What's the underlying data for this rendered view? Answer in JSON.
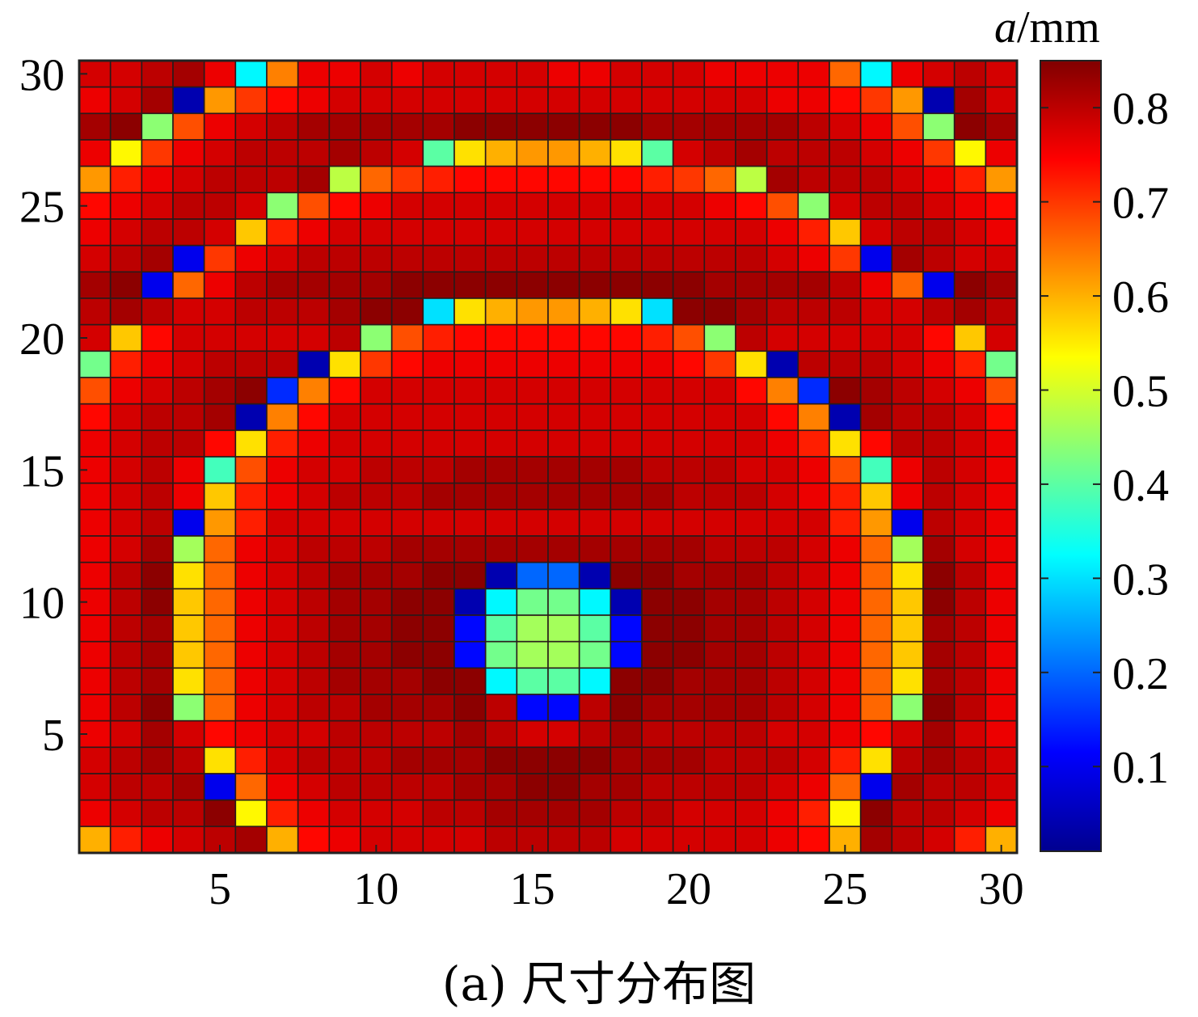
{
  "caption": "(a) 尺寸分布图",
  "chart_data": {
    "type": "heatmap",
    "title": "",
    "xlabel": "",
    "ylabel": "",
    "x_range": [
      1,
      30
    ],
    "y_range": [
      1,
      30
    ],
    "x_ticks": [
      5,
      10,
      15,
      20,
      25,
      30
    ],
    "y_ticks": [
      5,
      10,
      15,
      20,
      25,
      30
    ],
    "colorbar": {
      "label_italic": "a",
      "label_unit": "/mm",
      "range": [
        0.01,
        0.85
      ],
      "ticks": [
        0.1,
        0.2,
        0.3,
        0.4,
        0.5,
        0.6,
        0.7,
        0.8
      ],
      "colormap": "jet"
    },
    "grid": true,
    "note_rows": "values[0] is y=30 (top row), values[29] is y=1 (bottom row); columns x=1..30",
    "values": [
      [
        0.78,
        0.78,
        0.8,
        0.82,
        0.76,
        0.32,
        0.64,
        0.76,
        0.76,
        0.78,
        0.76,
        0.78,
        0.78,
        0.78,
        0.78,
        0.76,
        0.76,
        0.78,
        0.78,
        0.78,
        0.76,
        0.76,
        0.76,
        0.76,
        0.66,
        0.32,
        0.76,
        0.78,
        0.8,
        0.78
      ],
      [
        0.76,
        0.78,
        0.82,
        0.05,
        0.62,
        0.7,
        0.74,
        0.76,
        0.78,
        0.78,
        0.78,
        0.78,
        0.78,
        0.78,
        0.78,
        0.78,
        0.78,
        0.78,
        0.78,
        0.78,
        0.78,
        0.78,
        0.76,
        0.76,
        0.74,
        0.7,
        0.62,
        0.05,
        0.82,
        0.78
      ],
      [
        0.82,
        0.84,
        0.44,
        0.68,
        0.76,
        0.78,
        0.8,
        0.82,
        0.82,
        0.82,
        0.82,
        0.82,
        0.84,
        0.84,
        0.84,
        0.84,
        0.84,
        0.84,
        0.82,
        0.82,
        0.82,
        0.82,
        0.82,
        0.8,
        0.78,
        0.76,
        0.68,
        0.44,
        0.84,
        0.82
      ],
      [
        0.76,
        0.54,
        0.7,
        0.76,
        0.78,
        0.8,
        0.8,
        0.8,
        0.82,
        0.8,
        0.78,
        0.4,
        0.56,
        0.6,
        0.62,
        0.62,
        0.6,
        0.56,
        0.4,
        0.78,
        0.8,
        0.82,
        0.8,
        0.8,
        0.8,
        0.78,
        0.76,
        0.7,
        0.54,
        0.76
      ],
      [
        0.62,
        0.72,
        0.76,
        0.78,
        0.8,
        0.8,
        0.8,
        0.82,
        0.48,
        0.66,
        0.7,
        0.72,
        0.74,
        0.74,
        0.74,
        0.74,
        0.74,
        0.74,
        0.72,
        0.7,
        0.66,
        0.48,
        0.82,
        0.8,
        0.8,
        0.8,
        0.78,
        0.76,
        0.72,
        0.62
      ],
      [
        0.74,
        0.76,
        0.78,
        0.8,
        0.8,
        0.78,
        0.44,
        0.68,
        0.74,
        0.76,
        0.78,
        0.78,
        0.78,
        0.78,
        0.78,
        0.78,
        0.78,
        0.78,
        0.78,
        0.78,
        0.76,
        0.74,
        0.68,
        0.44,
        0.78,
        0.8,
        0.8,
        0.78,
        0.76,
        0.74
      ],
      [
        0.76,
        0.78,
        0.8,
        0.8,
        0.78,
        0.58,
        0.72,
        0.76,
        0.78,
        0.78,
        0.78,
        0.78,
        0.78,
        0.78,
        0.78,
        0.78,
        0.78,
        0.78,
        0.78,
        0.78,
        0.78,
        0.78,
        0.76,
        0.72,
        0.58,
        0.78,
        0.8,
        0.8,
        0.78,
        0.76
      ],
      [
        0.78,
        0.8,
        0.82,
        0.1,
        0.7,
        0.76,
        0.78,
        0.8,
        0.8,
        0.8,
        0.8,
        0.8,
        0.8,
        0.8,
        0.8,
        0.8,
        0.8,
        0.8,
        0.8,
        0.8,
        0.8,
        0.8,
        0.78,
        0.76,
        0.7,
        0.1,
        0.82,
        0.8,
        0.78,
        0.78
      ],
      [
        0.82,
        0.84,
        0.1,
        0.66,
        0.76,
        0.8,
        0.82,
        0.82,
        0.82,
        0.82,
        0.84,
        0.84,
        0.84,
        0.84,
        0.84,
        0.84,
        0.84,
        0.84,
        0.84,
        0.84,
        0.82,
        0.82,
        0.82,
        0.82,
        0.8,
        0.76,
        0.66,
        0.1,
        0.84,
        0.82
      ],
      [
        0.8,
        0.82,
        0.8,
        0.78,
        0.78,
        0.8,
        0.8,
        0.8,
        0.82,
        0.84,
        0.84,
        0.3,
        0.56,
        0.6,
        0.62,
        0.62,
        0.6,
        0.56,
        0.3,
        0.84,
        0.84,
        0.82,
        0.8,
        0.8,
        0.8,
        0.78,
        0.78,
        0.8,
        0.82,
        0.8
      ],
      [
        0.78,
        0.58,
        0.74,
        0.78,
        0.78,
        0.78,
        0.78,
        0.78,
        0.8,
        0.44,
        0.68,
        0.72,
        0.74,
        0.74,
        0.74,
        0.74,
        0.74,
        0.74,
        0.72,
        0.68,
        0.44,
        0.8,
        0.78,
        0.78,
        0.78,
        0.78,
        0.78,
        0.74,
        0.58,
        0.78
      ],
      [
        0.42,
        0.72,
        0.76,
        0.78,
        0.8,
        0.8,
        0.8,
        0.05,
        0.56,
        0.7,
        0.74,
        0.76,
        0.76,
        0.76,
        0.76,
        0.76,
        0.76,
        0.76,
        0.76,
        0.74,
        0.7,
        0.56,
        0.05,
        0.8,
        0.8,
        0.8,
        0.78,
        0.76,
        0.72,
        0.42
      ],
      [
        0.68,
        0.76,
        0.78,
        0.8,
        0.82,
        0.84,
        0.15,
        0.64,
        0.74,
        0.78,
        0.78,
        0.78,
        0.78,
        0.78,
        0.78,
        0.78,
        0.78,
        0.78,
        0.78,
        0.78,
        0.78,
        0.74,
        0.64,
        0.15,
        0.84,
        0.82,
        0.8,
        0.78,
        0.76,
        0.68
      ],
      [
        0.74,
        0.78,
        0.8,
        0.8,
        0.82,
        0.05,
        0.64,
        0.74,
        0.78,
        0.78,
        0.78,
        0.78,
        0.78,
        0.78,
        0.78,
        0.78,
        0.78,
        0.78,
        0.78,
        0.78,
        0.78,
        0.78,
        0.74,
        0.64,
        0.05,
        0.82,
        0.8,
        0.8,
        0.78,
        0.74
      ],
      [
        0.76,
        0.78,
        0.8,
        0.8,
        0.74,
        0.56,
        0.72,
        0.76,
        0.78,
        0.78,
        0.78,
        0.78,
        0.78,
        0.78,
        0.78,
        0.78,
        0.78,
        0.78,
        0.78,
        0.78,
        0.78,
        0.78,
        0.76,
        0.72,
        0.56,
        0.74,
        0.8,
        0.8,
        0.78,
        0.76
      ],
      [
        0.76,
        0.78,
        0.8,
        0.76,
        0.38,
        0.68,
        0.76,
        0.78,
        0.78,
        0.8,
        0.8,
        0.8,
        0.82,
        0.82,
        0.82,
        0.82,
        0.82,
        0.82,
        0.8,
        0.8,
        0.8,
        0.78,
        0.78,
        0.76,
        0.68,
        0.38,
        0.76,
        0.8,
        0.78,
        0.76
      ],
      [
        0.76,
        0.78,
        0.8,
        0.76,
        0.58,
        0.72,
        0.76,
        0.78,
        0.8,
        0.8,
        0.8,
        0.82,
        0.82,
        0.82,
        0.82,
        0.82,
        0.82,
        0.82,
        0.82,
        0.8,
        0.8,
        0.8,
        0.78,
        0.76,
        0.72,
        0.58,
        0.76,
        0.8,
        0.78,
        0.76
      ],
      [
        0.76,
        0.78,
        0.8,
        0.1,
        0.62,
        0.72,
        0.78,
        0.78,
        0.78,
        0.78,
        0.78,
        0.78,
        0.78,
        0.78,
        0.78,
        0.78,
        0.78,
        0.78,
        0.78,
        0.78,
        0.78,
        0.78,
        0.78,
        0.78,
        0.72,
        0.62,
        0.1,
        0.8,
        0.78,
        0.76
      ],
      [
        0.76,
        0.78,
        0.82,
        0.46,
        0.66,
        0.76,
        0.78,
        0.8,
        0.8,
        0.8,
        0.82,
        0.82,
        0.82,
        0.82,
        0.82,
        0.82,
        0.82,
        0.82,
        0.82,
        0.82,
        0.8,
        0.8,
        0.8,
        0.78,
        0.76,
        0.66,
        0.46,
        0.82,
        0.78,
        0.76
      ],
      [
        0.76,
        0.8,
        0.84,
        0.56,
        0.66,
        0.76,
        0.78,
        0.8,
        0.82,
        0.82,
        0.82,
        0.84,
        0.84,
        0.05,
        0.2,
        0.2,
        0.05,
        0.84,
        0.84,
        0.82,
        0.82,
        0.82,
        0.8,
        0.78,
        0.76,
        0.66,
        0.56,
        0.84,
        0.8,
        0.76
      ],
      [
        0.76,
        0.8,
        0.84,
        0.58,
        0.66,
        0.76,
        0.78,
        0.8,
        0.82,
        0.82,
        0.84,
        0.84,
        0.05,
        0.32,
        0.42,
        0.42,
        0.32,
        0.05,
        0.84,
        0.84,
        0.82,
        0.82,
        0.8,
        0.78,
        0.76,
        0.66,
        0.58,
        0.84,
        0.8,
        0.76
      ],
      [
        0.76,
        0.8,
        0.82,
        0.58,
        0.66,
        0.76,
        0.78,
        0.8,
        0.82,
        0.82,
        0.84,
        0.84,
        0.12,
        0.4,
        0.46,
        0.46,
        0.4,
        0.12,
        0.84,
        0.84,
        0.82,
        0.82,
        0.8,
        0.78,
        0.76,
        0.66,
        0.58,
        0.82,
        0.8,
        0.76
      ],
      [
        0.76,
        0.8,
        0.82,
        0.58,
        0.66,
        0.76,
        0.78,
        0.8,
        0.82,
        0.82,
        0.84,
        0.84,
        0.12,
        0.42,
        0.46,
        0.46,
        0.42,
        0.12,
        0.84,
        0.84,
        0.82,
        0.82,
        0.8,
        0.78,
        0.76,
        0.66,
        0.58,
        0.82,
        0.8,
        0.76
      ],
      [
        0.76,
        0.8,
        0.82,
        0.56,
        0.66,
        0.76,
        0.78,
        0.8,
        0.82,
        0.82,
        0.82,
        0.84,
        0.84,
        0.32,
        0.4,
        0.4,
        0.32,
        0.84,
        0.84,
        0.82,
        0.82,
        0.82,
        0.8,
        0.78,
        0.76,
        0.66,
        0.56,
        0.82,
        0.8,
        0.76
      ],
      [
        0.76,
        0.8,
        0.84,
        0.44,
        0.66,
        0.76,
        0.78,
        0.8,
        0.8,
        0.82,
        0.82,
        0.82,
        0.84,
        0.8,
        0.12,
        0.12,
        0.8,
        0.84,
        0.82,
        0.82,
        0.82,
        0.82,
        0.8,
        0.78,
        0.76,
        0.66,
        0.44,
        0.84,
        0.8,
        0.76
      ],
      [
        0.76,
        0.78,
        0.82,
        0.78,
        0.74,
        0.76,
        0.78,
        0.78,
        0.8,
        0.8,
        0.8,
        0.8,
        0.82,
        0.8,
        0.78,
        0.78,
        0.8,
        0.82,
        0.8,
        0.8,
        0.8,
        0.8,
        0.78,
        0.78,
        0.76,
        0.74,
        0.78,
        0.82,
        0.78,
        0.76
      ],
      [
        0.78,
        0.8,
        0.82,
        0.8,
        0.56,
        0.72,
        0.78,
        0.8,
        0.8,
        0.8,
        0.82,
        0.82,
        0.82,
        0.84,
        0.84,
        0.84,
        0.84,
        0.82,
        0.82,
        0.82,
        0.8,
        0.8,
        0.8,
        0.78,
        0.72,
        0.56,
        0.8,
        0.82,
        0.8,
        0.78
      ],
      [
        0.78,
        0.8,
        0.8,
        0.82,
        0.1,
        0.66,
        0.76,
        0.78,
        0.8,
        0.8,
        0.8,
        0.8,
        0.82,
        0.82,
        0.84,
        0.84,
        0.82,
        0.82,
        0.8,
        0.8,
        0.8,
        0.8,
        0.78,
        0.76,
        0.66,
        0.1,
        0.82,
        0.8,
        0.8,
        0.78
      ],
      [
        0.76,
        0.78,
        0.8,
        0.8,
        0.84,
        0.54,
        0.72,
        0.76,
        0.78,
        0.78,
        0.78,
        0.8,
        0.8,
        0.82,
        0.82,
        0.82,
        0.82,
        0.8,
        0.8,
        0.78,
        0.78,
        0.78,
        0.76,
        0.72,
        0.54,
        0.84,
        0.8,
        0.8,
        0.78,
        0.76
      ],
      [
        0.6,
        0.72,
        0.76,
        0.78,
        0.8,
        0.82,
        0.6,
        0.74,
        0.76,
        0.78,
        0.78,
        0.78,
        0.78,
        0.8,
        0.8,
        0.8,
        0.8,
        0.78,
        0.78,
        0.78,
        0.78,
        0.78,
        0.76,
        0.74,
        0.6,
        0.82,
        0.8,
        0.78,
        0.72,
        0.6
      ]
    ]
  }
}
